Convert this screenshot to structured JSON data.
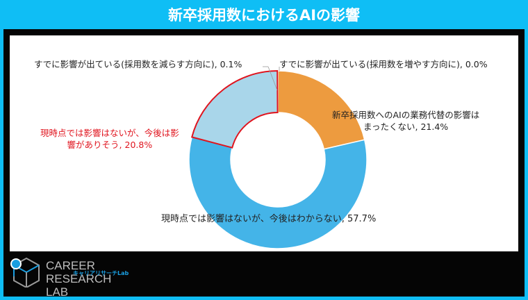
{
  "header": {
    "title": "新卒採用数におけるAIの影響"
  },
  "chart_data": {
    "type": "pie",
    "variant": "donut",
    "title": "新卒採用数におけるAIの影響",
    "categories": [
      "すでに影響が出ている(採用数を増やす方向に)",
      "新卒採用数へのAIの業務代替の影響はまったくない",
      "現時点では影響はないが、今後はわからない",
      "現時点では影響はないが、今後は影響がありそう",
      "すでに影響が出ている(採用数を減らす方向に)"
    ],
    "values": [
      0.0,
      21.4,
      57.7,
      20.8,
      0.1
    ],
    "colors": [
      "#ed9b3f",
      "#ed9b3f",
      "#44b4e8",
      "#a9d6ea",
      "#a9d6ea"
    ],
    "highlighted": "現時点では影響はないが、今後は影響がありそう",
    "highlight_color": "#e0141e",
    "unit": "%"
  },
  "labels": {
    "decrease": "すでに影響が出ている(採用数を減らす方向に), 0.1%",
    "increase": "すでに影響が出ている(採用数を増やす方向に), 0.0%",
    "none_line1": "新卒採用数へのAIの業務代替の影響は",
    "none_line2": "まったくない, 21.4%",
    "likely_line1": "現時点では影響はないが、今後は影",
    "likely_line2": "響がありそう, 20.8%",
    "unknown": "現時点では影響はないが、今後はわからない, 57.7%"
  },
  "logo": {
    "line1": "CAREER RESEARCH",
    "line2": "LAB",
    "sub": "キャリアリサーチLab"
  }
}
